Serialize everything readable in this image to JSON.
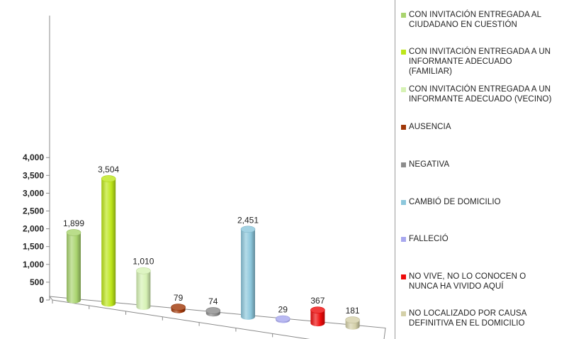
{
  "chart_data": {
    "type": "bar",
    "categories": [
      "CON INVITACIÓN ENTREGADA AL CIUDADANO EN CUESTIÓN",
      "CON INVITACIÓN ENTREGADA A UN INFORMANTE ADECUADO (FAMILIAR)",
      "CON INVITACIÓN ENTREGADA A UN INFORMANTE ADECUADO (VECINO)",
      "AUSENCIA",
      "NEGATIVA",
      "CAMBIÓ DE DOMICILIO",
      "FALLECIÓ",
      "NO VIVE, NO LO CONOCEN O NUNCA HA VIVIDO AQUÍ",
      "NO LOCALIZADO POR CAUSA DEFINITIVA EN EL DOMICILIO"
    ],
    "values": [
      1899,
      3504,
      1010,
      79,
      74,
      2451,
      29,
      367,
      181
    ],
    "value_labels": [
      "1,899",
      "3,504",
      "1,010",
      "79",
      "74",
      "2,451",
      "29",
      "367",
      "181"
    ],
    "colors": [
      "#a9d46e",
      "#bde619",
      "#d6f2b4",
      "#a03708",
      "#8c8c8c",
      "#8cc7dc",
      "#a8a8ef",
      "#ee0a0a",
      "#d4d0a8"
    ],
    "yticks": [
      "0",
      "500",
      "1,000",
      "1,500",
      "2,000",
      "2,500",
      "3,000",
      "3,500",
      "4,000"
    ],
    "ylim": [
      0,
      4000
    ],
    "legend_position": "right",
    "legend": [
      "CON INVITACIÓN ENTREGADA AL\nCIUDADANO EN CUESTIÓN",
      "CON INVITACIÓN ENTREGADA A UN\nINFORMANTE ADECUADO\n(FAMILIAR)",
      "CON INVITACIÓN ENTREGADA A UN\nINFORMANTE ADECUADO (VECINO)",
      "AUSENCIA",
      "NEGATIVA",
      "CAMBIÓ DE DOMICILIO",
      "FALLECIÓ",
      "NO VIVE, NO LO CONOCEN O\nNUNCA HA VIVIDO AQUÍ",
      "NO LOCALIZADO POR CAUSA\nDEFINITIVA EN EL DOMICILIO"
    ],
    "xlabel": "",
    "ylabel": "",
    "grid": false
  }
}
